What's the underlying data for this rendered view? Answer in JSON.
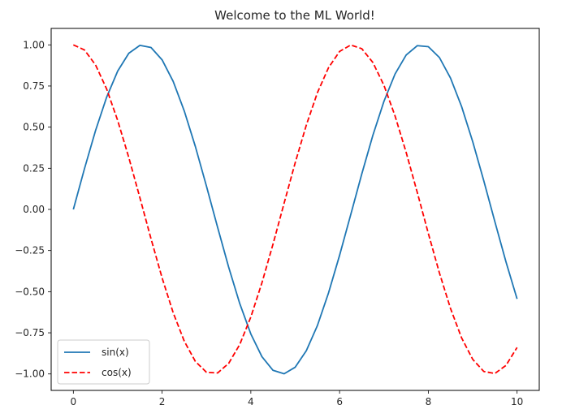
{
  "chart_data": {
    "type": "line",
    "title": "Welcome to the ML World!",
    "xlabel": "",
    "ylabel": "",
    "xlim": [
      -0.5,
      10.5
    ],
    "ylim": [
      -1.1,
      1.1
    ],
    "grid": false,
    "legend_position": "lower-left",
    "x_ticks": [
      0,
      2,
      4,
      6,
      8,
      10
    ],
    "x_tick_labels": [
      "0",
      "2",
      "4",
      "6",
      "8",
      "10"
    ],
    "y_ticks": [
      1.0,
      0.75,
      0.5,
      0.25,
      0.0,
      -0.25,
      -0.5,
      -0.75,
      -1.0
    ],
    "y_tick_labels": [
      "1.00",
      "0.75",
      "0.50",
      "0.25",
      "0.00",
      "−0.25",
      "−0.50",
      "−0.75",
      "−1.00"
    ],
    "x": [
      0,
      0.25,
      0.5,
      0.75,
      1,
      1.25,
      1.5,
      1.75,
      2,
      2.25,
      2.5,
      2.75,
      3,
      3.25,
      3.5,
      3.75,
      4,
      4.25,
      4.5,
      4.75,
      5,
      5.25,
      5.5,
      5.75,
      6,
      6.25,
      6.5,
      6.75,
      7,
      7.25,
      7.5,
      7.75,
      8,
      8.25,
      8.5,
      8.75,
      9,
      9.25,
      9.5,
      9.75,
      10
    ],
    "series": [
      {
        "name": "sin(x)",
        "color": "#1f77b4",
        "style": "solid",
        "values": [
          0.0,
          0.247,
          0.479,
          0.682,
          0.841,
          0.949,
          0.997,
          0.984,
          0.909,
          0.778,
          0.598,
          0.382,
          0.141,
          -0.108,
          -0.351,
          -0.572,
          -0.757,
          -0.895,
          -0.978,
          -0.999,
          -0.959,
          -0.859,
          -0.706,
          -0.508,
          -0.279,
          -0.033,
          0.215,
          0.45,
          0.657,
          0.823,
          0.938,
          0.995,
          0.989,
          0.923,
          0.798,
          0.625,
          0.412,
          0.174,
          -0.075,
          -0.319,
          -0.544
        ]
      },
      {
        "name": "cos(x)",
        "color": "#ff0000",
        "style": "dashed",
        "values": [
          1.0,
          0.969,
          0.878,
          0.732,
          0.54,
          0.315,
          0.071,
          -0.178,
          -0.416,
          -0.628,
          -0.801,
          -0.924,
          -0.99,
          -0.994,
          -0.936,
          -0.821,
          -0.654,
          -0.446,
          -0.211,
          0.038,
          0.284,
          0.512,
          0.709,
          0.861,
          0.96,
          0.999,
          0.977,
          0.893,
          0.754,
          0.568,
          0.347,
          0.104,
          -0.146,
          -0.386,
          -0.602,
          -0.781,
          -0.911,
          -0.985,
          -0.997,
          -0.948,
          -0.839
        ]
      }
    ]
  }
}
